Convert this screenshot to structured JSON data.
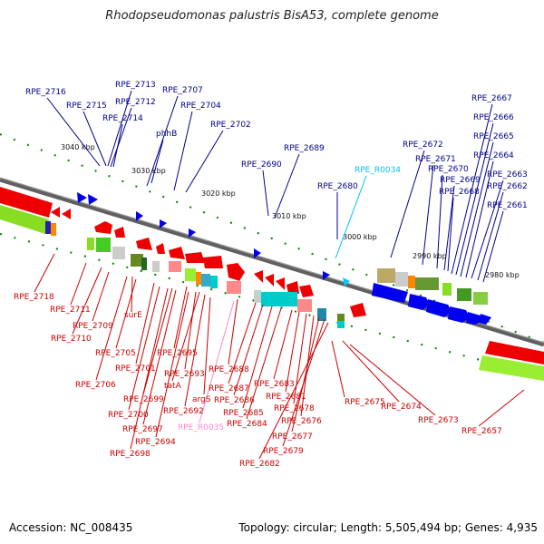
{
  "title": "Rhodopseudomonas palustris BisA53, complete genome",
  "footer": {
    "accession": "Accession: NC_008435",
    "topology": "Topology: circular; Length: 5,505,494 bp; Genes: 4,935"
  },
  "colors": {
    "top_labels": "#00008b",
    "bottom_labels": "#cc0000",
    "rna_label": "#00bfff",
    "pink_label": "#ff88cc",
    "axis": "#808080",
    "tick": "#008000"
  },
  "ticks": [
    "3040 kbp",
    "3030 kbp",
    "3020 kbp",
    "3010 kbp",
    "3000 kbp",
    "2990 kbp",
    "2980 kbp"
  ],
  "top_labels": [
    "RPE_2716",
    "RPE_2715",
    "RPE_2713",
    "RPE_2712",
    "RPE_2714",
    "RPE_2707",
    "RPE_2704",
    "phhB",
    "RPE_2702",
    "RPE_2690",
    "RPE_2689",
    "RPE_R0034",
    "RPE_2680",
    "RPE_2672",
    "RPE_2671",
    "RPE_2670",
    "RPE_2669",
    "RPE_2668",
    "RPE_2667",
    "RPE_2666",
    "RPE_2665",
    "RPE_2664",
    "RPE_2663",
    "RPE_2662",
    "RPE_2661"
  ],
  "bottom_labels": [
    "RPE_2718",
    "RPE_2711",
    "RPE_2709",
    "RPE_2710",
    "surE",
    "RPE_2705",
    "RPE_2701",
    "RPE_2695",
    "RPE_2706",
    "RPE_2693",
    "tatA",
    "RPE_2699",
    "RPE_2700",
    "argS",
    "RPE_2692",
    "RPE_2697",
    "RPE_2694",
    "RPE_2698",
    "RPE_R0035",
    "RPE_2688",
    "RPE_2687",
    "RPE_2686",
    "RPE_2685",
    "RPE_2684",
    "RPE_2683",
    "RPE_2681",
    "RPE_2678",
    "RPE_2676",
    "RPE_2677",
    "RPE_2679",
    "RPE_2682",
    "RPE_2675",
    "RPE_2674",
    "RPE_2673",
    "RPE_2657"
  ]
}
